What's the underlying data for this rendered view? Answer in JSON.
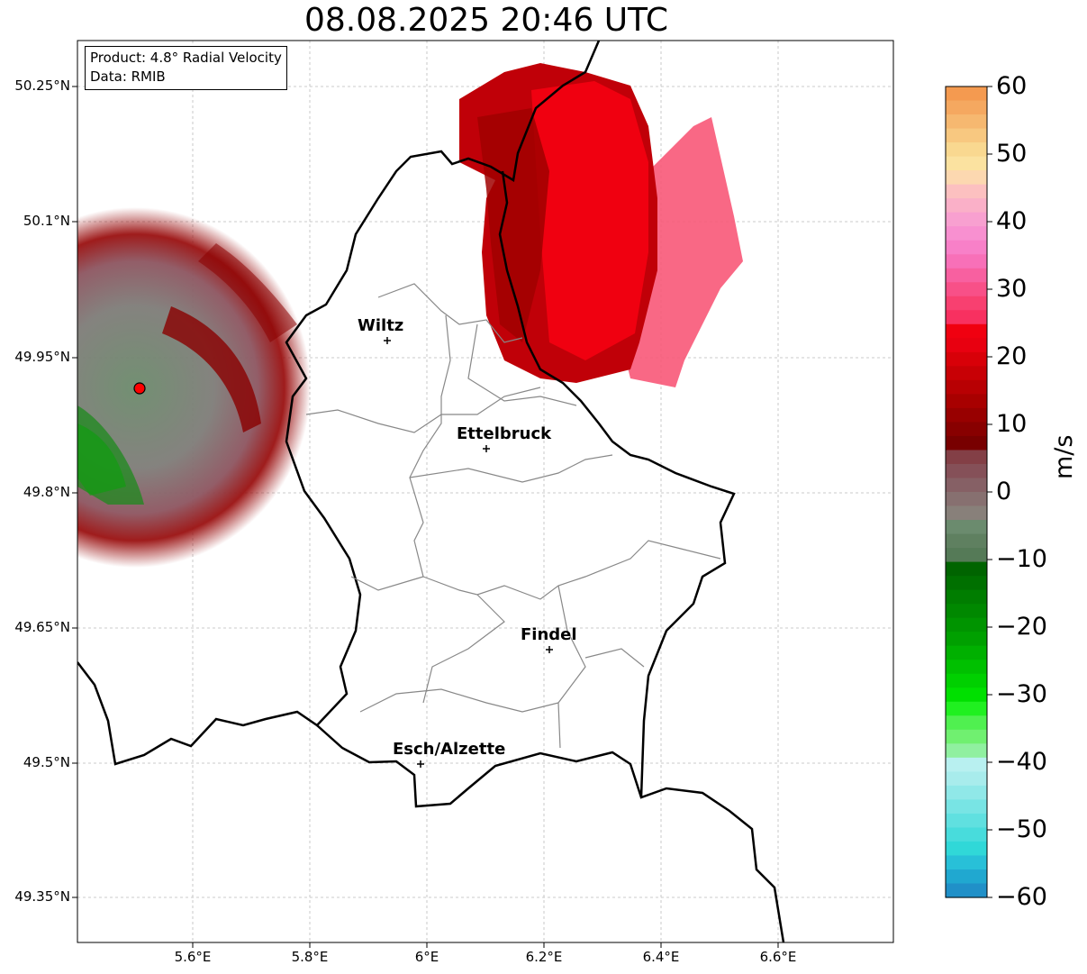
{
  "title": "08.08.2025 20:46 UTC",
  "info": {
    "product": "Product: 4.8° Radial Velocity",
    "data": "Data: RMIB"
  },
  "axes": {
    "lat_labels": [
      "50.25°N",
      "50.1°N",
      "49.95°N",
      "49.8°N",
      "49.65°N",
      "49.5°N",
      "49.35°N"
    ],
    "lon_labels": [
      "5.6°E",
      "5.8°E",
      "6°E",
      "6.2°E",
      "6.4°E",
      "6.6°E"
    ]
  },
  "cities": [
    {
      "name": "Wiltz"
    },
    {
      "name": "Ettelbruck"
    },
    {
      "name": "Findel"
    },
    {
      "name": "Esch/Alzette"
    }
  ],
  "colorbar": {
    "unit": "m/s",
    "ticks": [
      "60",
      "50",
      "40",
      "30",
      "20",
      "10",
      "0",
      "−10",
      "−20",
      "−30",
      "−40",
      "−50",
      "−60"
    ],
    "colors": [
      "#f49a50",
      "#f5a860",
      "#f6b870",
      "#f8c880",
      "#f9d890",
      "#fbe2a0",
      "#fcd8b0",
      "#fcc0c0",
      "#fab0c8",
      "#f8a0d0",
      "#f890d0",
      "#f880c8",
      "#f870b8",
      "#f860a0",
      "#f85088",
      "#f84070",
      "#f83060",
      "#f00010",
      "#e80010",
      "#d80008",
      "#c80005",
      "#b80003",
      "#a80000",
      "#980000",
      "#880000",
      "#780000",
      "#833f46",
      "#855058",
      "#866065",
      "#877070",
      "#88807a",
      "#6b8b6e",
      "#5f8060",
      "#557a57",
      "#006400",
      "#007000",
      "#007d00",
      "#008800",
      "#009400",
      "#00a000",
      "#00b000",
      "#00c000",
      "#00d000",
      "#00e000",
      "#20f020",
      "#50f050",
      "#70f070",
      "#90f0a0",
      "#b8f0f0",
      "#a8ecec",
      "#90e8e8",
      "#78e4e4",
      "#60e0e0",
      "#48dcdc",
      "#30d8d8",
      "#28c0d8",
      "#20a8d0",
      "#2090c8"
    ]
  },
  "radar_site": {
    "color": "#ff0000"
  }
}
